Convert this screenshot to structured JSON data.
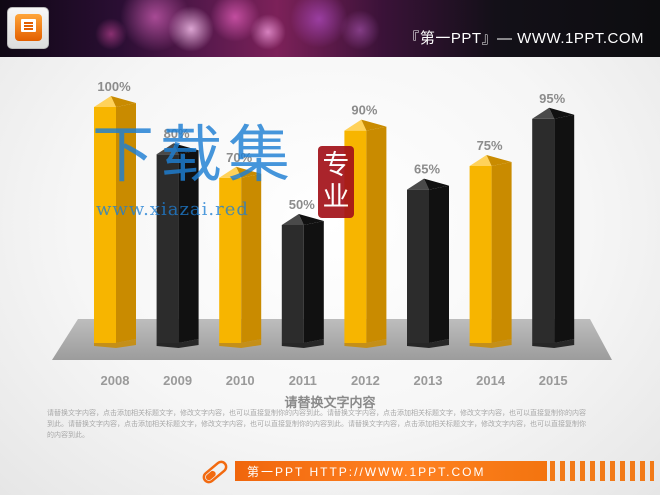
{
  "header": {
    "title": "『第一PPT』— WWW.1PPT.COM"
  },
  "colors": {
    "gold": "#f7b500",
    "gold_shadow": "#c98b00",
    "black": "#2c2c2c",
    "black_shadow": "#111111",
    "label": "#8c8c8c",
    "footer_orange": "#f47a14"
  },
  "watermark": {
    "big_text": "下载集",
    "seal_text": "专业",
    "url": "www.xiazai.red"
  },
  "chart_data": {
    "type": "bar",
    "categories": [
      "2008",
      "2009",
      "2010",
      "2011",
      "2012",
      "2013",
      "2014",
      "2015"
    ],
    "values": [
      100,
      80,
      70,
      50,
      90,
      65,
      75,
      95
    ],
    "value_labels": [
      "100%",
      "80%",
      "70%",
      "50%",
      "90%",
      "65%",
      "75%",
      "95%"
    ],
    "bar_colors": [
      "gold",
      "black",
      "gold",
      "black",
      "gold",
      "black",
      "gold",
      "black"
    ],
    "ylim": [
      0,
      100
    ],
    "title": "",
    "xlabel": "",
    "ylabel": "",
    "grid": false,
    "style": "3d-column"
  },
  "caption": "请替换文字内容",
  "body_lines": [
    "请替换文字内容，点击添加相关标题文字，修改文字内容，也可以直接复制你的内容到此。请替换文字内容，点击添加相关标题文字，修改文字内容，也可以直接复制你的内容",
    "到此。请替换文字内容，点击添加相关标题文字，修改文字内容，也可以直接复制你的内容到此。请替换文字内容，点击添加相关标题文字，修改文字内容，也可以直接复制你",
    "的内容到此。"
  ],
  "footer": {
    "text": "第一PPT  HTTP://WWW.1PPT.COM"
  },
  "icons": {
    "logo": "powerpoint-logo-icon",
    "footer": "capsule-pencil-icon"
  }
}
